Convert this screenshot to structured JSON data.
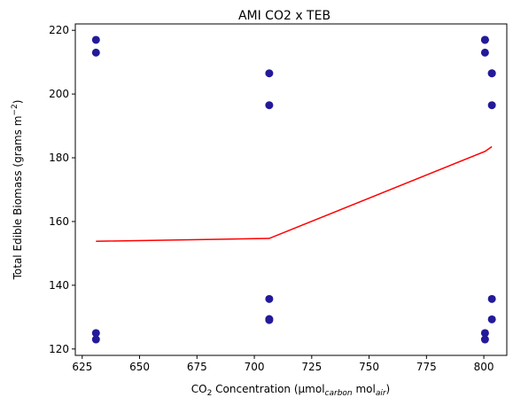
{
  "chart_data": {
    "type": "scatter",
    "title": "AMI CO2 x TEB",
    "xlabel": "CO₂ Concentration (μmolcarbon molair)",
    "ylabel": "Total Edible Biomass (grams m⁻²)",
    "xlabel_parts": {
      "pre": "CO",
      "sub1": "2",
      "mid": " Concentration (μmol",
      "sub2": "carbon",
      "mid2": " mol",
      "sub3": "air",
      "post": ")"
    },
    "ylabel_parts": {
      "pre": "Total Edible Biomass (grams m",
      "sup": "−2",
      "post": ")"
    },
    "xlim": [
      622,
      810
    ],
    "ylim": [
      118,
      222
    ],
    "xticks": [
      625,
      650,
      675,
      700,
      725,
      750,
      775,
      800
    ],
    "yticks": [
      120,
      140,
      160,
      180,
      200,
      220
    ],
    "grid": false,
    "colors": {
      "points": "#231a99",
      "line": "#ff0000",
      "axes": "#000000"
    },
    "series": [
      {
        "kind": "scatter",
        "points": [
          [
            631,
            217
          ],
          [
            631,
            213
          ],
          [
            631,
            125
          ],
          [
            631,
            123
          ],
          [
            706.5,
            206.5
          ],
          [
            706.5,
            196.5
          ],
          [
            706.5,
            135.7
          ],
          [
            706.5,
            129.4
          ],
          [
            706.5,
            129.1
          ],
          [
            800.5,
            217
          ],
          [
            800.5,
            217
          ],
          [
            800.5,
            213
          ],
          [
            800.5,
            125
          ],
          [
            800.5,
            123
          ],
          [
            803.5,
            206.5
          ],
          [
            803.5,
            206.5
          ],
          [
            803.5,
            196.5
          ],
          [
            803.5,
            135.7
          ],
          [
            803.5,
            129.3
          ]
        ]
      },
      {
        "kind": "line",
        "points": [
          [
            631,
            153.8
          ],
          [
            706.5,
            154.7
          ],
          [
            800.5,
            182
          ],
          [
            803.5,
            183.5
          ]
        ]
      }
    ]
  }
}
